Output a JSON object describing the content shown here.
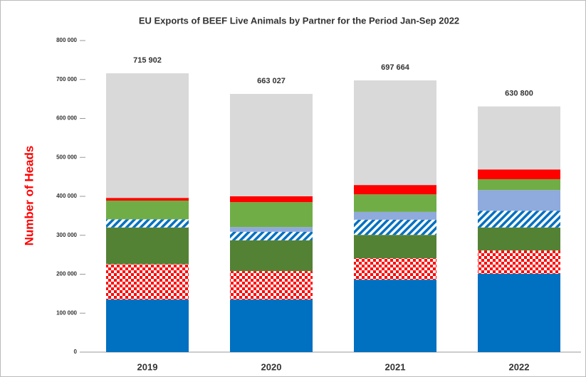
{
  "chart_data": {
    "type": "stacked-bar",
    "title": "EU Exports of BEEF Live Animals by Partner for the Period Jan-Sep 2022",
    "y_label": "Number of Heads",
    "categories": [
      "2019",
      "2020",
      "2021",
      "2022"
    ],
    "series": [
      {
        "color": "#0070c0",
        "pattern": "solid",
        "values": [
          135000,
          135000,
          186000,
          201000
        ]
      },
      {
        "color": "#ff0000",
        "pattern": "checker",
        "values": [
          91000,
          73000,
          55000,
          60000
        ]
      },
      {
        "color": "#548235",
        "pattern": "solid",
        "values": [
          94000,
          79000,
          60000,
          59000
        ]
      },
      {
        "color": "#0070c0",
        "pattern": "hatch",
        "values": [
          21000,
          22000,
          39000,
          43000
        ]
      },
      {
        "color": "#8faadc",
        "pattern": "solid",
        "values": [
          0,
          12000,
          20000,
          53000
        ]
      },
      {
        "color": "#70ad47",
        "pattern": "solid",
        "values": [
          48000,
          64000,
          45000,
          28000
        ]
      },
      {
        "color": "#ff0000",
        "pattern": "solid",
        "values": [
          7000,
          15000,
          24000,
          25000
        ]
      },
      {
        "color": "#d9d9d9",
        "pattern": "solid",
        "values": [
          319902,
          263027,
          268664,
          161800
        ]
      }
    ],
    "totals": [
      715902,
      663027,
      697664,
      630800
    ],
    "total_labels": [
      "715 902",
      "663 027",
      "697 664",
      "630 800"
    ],
    "ylim": [
      0,
      800000
    ],
    "yticks": [
      0,
      {
        "value": 100000,
        "label": "100 000"
      },
      {
        "value": 200000,
        "label": "200 000"
      },
      {
        "value": 300000,
        "label": "300 000"
      },
      {
        "value": 400000,
        "label": "400 000"
      },
      {
        "value": 500000,
        "label": "500 000"
      },
      {
        "value": 600000,
        "label": "600 000"
      },
      {
        "value": 700000,
        "label": "700 000"
      },
      {
        "value": 800000,
        "label": "800 000"
      }
    ],
    "grid": false
  }
}
